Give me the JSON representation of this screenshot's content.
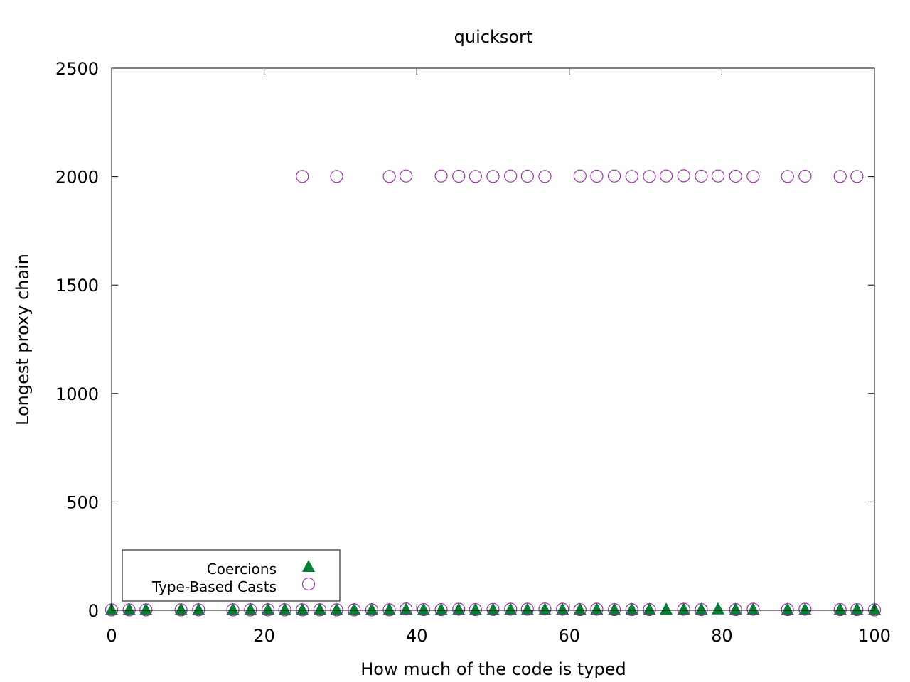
{
  "chart_data": {
    "type": "scatter",
    "title": "quicksort",
    "xlabel": "How much of the code is typed",
    "ylabel": "Longest proxy chain",
    "xlim": [
      0,
      100
    ],
    "ylim": [
      0,
      2500
    ],
    "xticks": [
      "0",
      "20",
      "40",
      "60",
      "80",
      "100"
    ],
    "yticks": [
      "0",
      "500",
      "1000",
      "1500",
      "2000",
      "2500"
    ],
    "grid": false,
    "legend_position": "bottom-left",
    "series": [
      {
        "name": "Coercions",
        "marker": "filled-triangle",
        "color": "#008033",
        "points": [
          [
            0,
            2
          ],
          [
            2.3,
            2
          ],
          [
            4.5,
            2
          ],
          [
            9.1,
            2
          ],
          [
            11.4,
            2
          ],
          [
            15.9,
            2
          ],
          [
            18.2,
            2
          ],
          [
            20.5,
            3
          ],
          [
            22.7,
            2
          ],
          [
            25,
            2
          ],
          [
            27.3,
            2
          ],
          [
            29.5,
            2
          ],
          [
            31.8,
            2
          ],
          [
            34.1,
            2
          ],
          [
            36.4,
            2
          ],
          [
            38.6,
            3
          ],
          [
            40.9,
            2
          ],
          [
            43.2,
            2
          ],
          [
            45.5,
            3
          ],
          [
            47.7,
            2
          ],
          [
            50,
            2
          ],
          [
            52.3,
            3
          ],
          [
            54.5,
            2
          ],
          [
            56.8,
            3
          ],
          [
            59.1,
            3
          ],
          [
            61.4,
            2
          ],
          [
            63.6,
            3
          ],
          [
            65.9,
            2
          ],
          [
            68.2,
            3
          ],
          [
            70.5,
            3
          ],
          [
            72.7,
            3
          ],
          [
            75,
            3
          ],
          [
            77.3,
            3
          ],
          [
            79.5,
            4
          ],
          [
            81.8,
            3
          ],
          [
            84.1,
            3
          ],
          [
            88.6,
            3
          ],
          [
            90.9,
            3
          ],
          [
            95.5,
            3
          ],
          [
            97.7,
            3
          ],
          [
            100,
            3
          ]
        ]
      },
      {
        "name": "Type-Based Casts",
        "marker": "open-circle",
        "color": "#9932a6",
        "points": [
          [
            0,
            2
          ],
          [
            2.3,
            2
          ],
          [
            4.5,
            2
          ],
          [
            9.1,
            2
          ],
          [
            11.4,
            2
          ],
          [
            15.9,
            2
          ],
          [
            18.2,
            2
          ],
          [
            20.5,
            2
          ],
          [
            22.7,
            2
          ],
          [
            25,
            2
          ],
          [
            27.3,
            2
          ],
          [
            29.5,
            2
          ],
          [
            31.8,
            2
          ],
          [
            34.1,
            2
          ],
          [
            36.4,
            2
          ],
          [
            38.6,
            6
          ],
          [
            40.9,
            3
          ],
          [
            43.2,
            3
          ],
          [
            45.5,
            5
          ],
          [
            47.7,
            3
          ],
          [
            50,
            4
          ],
          [
            52.3,
            5
          ],
          [
            54.5,
            5
          ],
          [
            56.8,
            6
          ],
          [
            59.1,
            5
          ],
          [
            61.4,
            3
          ],
          [
            63.6,
            5
          ],
          [
            65.9,
            3
          ],
          [
            68.2,
            3
          ],
          [
            70.5,
            3
          ],
          [
            75,
            5
          ],
          [
            77.3,
            3
          ],
          [
            81.8,
            3
          ],
          [
            84.1,
            5
          ],
          [
            88.6,
            3
          ],
          [
            90.9,
            5
          ],
          [
            95.5,
            3
          ],
          [
            97.7,
            3
          ],
          [
            100,
            2
          ],
          [
            25,
            2001
          ],
          [
            29.5,
            2001
          ],
          [
            36.4,
            2001
          ],
          [
            38.6,
            2003
          ],
          [
            43.2,
            2003
          ],
          [
            45.5,
            2002
          ],
          [
            47.7,
            2001
          ],
          [
            50,
            2001
          ],
          [
            52.3,
            2003
          ],
          [
            54.5,
            2002
          ],
          [
            56.8,
            2001
          ],
          [
            61.4,
            2003
          ],
          [
            63.6,
            2002
          ],
          [
            65.9,
            2003
          ],
          [
            68.2,
            2001
          ],
          [
            70.5,
            2001
          ],
          [
            72.7,
            2003
          ],
          [
            75,
            2004
          ],
          [
            77.3,
            2002
          ],
          [
            79.5,
            2003
          ],
          [
            81.8,
            2002
          ],
          [
            84.1,
            2001
          ],
          [
            88.6,
            2001
          ],
          [
            90.9,
            2002
          ],
          [
            95.5,
            2001
          ],
          [
            97.7,
            2001
          ]
        ]
      }
    ]
  }
}
